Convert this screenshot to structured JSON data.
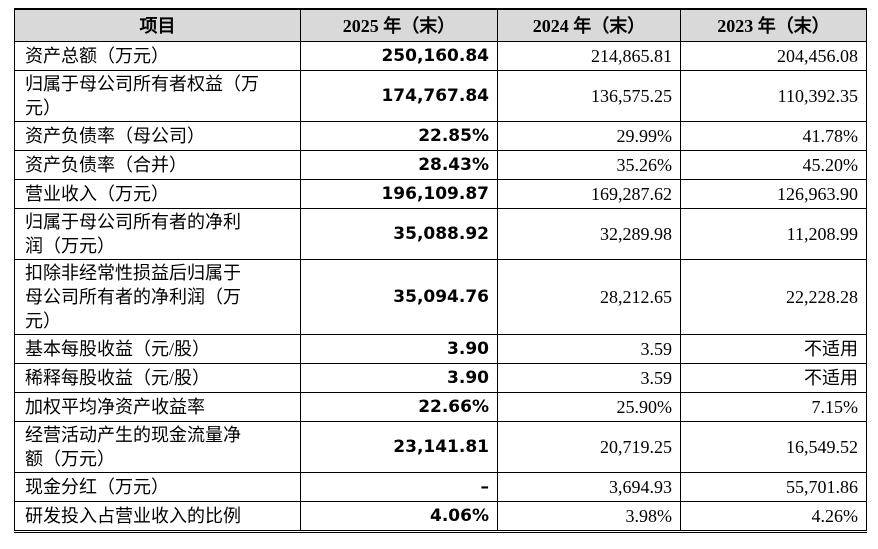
{
  "table": {
    "header": [
      "项目",
      "2025 年（末）",
      "2024 年（末）",
      "2023 年（末）"
    ],
    "rows": [
      {
        "label": [
          "资产总额（万元）"
        ],
        "values": [
          "250,160.84",
          "214,865.81",
          "204,456.08"
        ]
      },
      {
        "label": [
          "归属于母公司所有者权益（万",
          "元）"
        ],
        "values": [
          "174,767.84",
          "136,575.25",
          "110,392.35"
        ]
      },
      {
        "label": [
          "资产负债率（母公司）"
        ],
        "values": [
          "22.85%",
          "29.99%",
          "41.78%"
        ]
      },
      {
        "label": [
          "资产负债率（合并）"
        ],
        "values": [
          "28.43%",
          "35.26%",
          "45.20%"
        ]
      },
      {
        "label": [
          "营业收入（万元）"
        ],
        "values": [
          "196,109.87",
          "169,287.62",
          "126,963.90"
        ]
      },
      {
        "label": [
          "归属于母公司所有者的净利",
          "润（万元）"
        ],
        "values": [
          "35,088.92",
          "32,289.98",
          "11,208.99"
        ]
      },
      {
        "label": [
          "扣除非经常性损益后归属于",
          "母公司所有者的净利润（万",
          "元）"
        ],
        "values": [
          "35,094.76",
          "28,212.65",
          "22,228.28"
        ]
      },
      {
        "label": [
          "基本每股收益（元/股）"
        ],
        "values": [
          "3.90",
          "3.59",
          "不适用"
        ]
      },
      {
        "label": [
          "稀释每股收益（元/股）"
        ],
        "values": [
          "3.90",
          "3.59",
          "不适用"
        ]
      },
      {
        "label": [
          "加权平均净资产收益率"
        ],
        "values": [
          "22.66%",
          "25.90%",
          "7.15%"
        ]
      },
      {
        "label": [
          "经营活动产生的现金流量净",
          "额（万元）"
        ],
        "values": [
          "23,141.81",
          "20,719.25",
          "16,549.52"
        ]
      },
      {
        "label": [
          "现金分红（万元）"
        ],
        "values": [
          "–",
          "3,694.93",
          "55,701.86"
        ]
      },
      {
        "label": [
          "研发投入占营业收入的比例"
        ],
        "values": [
          "4.06%",
          "3.98%",
          "4.26%"
        ]
      }
    ]
  }
}
